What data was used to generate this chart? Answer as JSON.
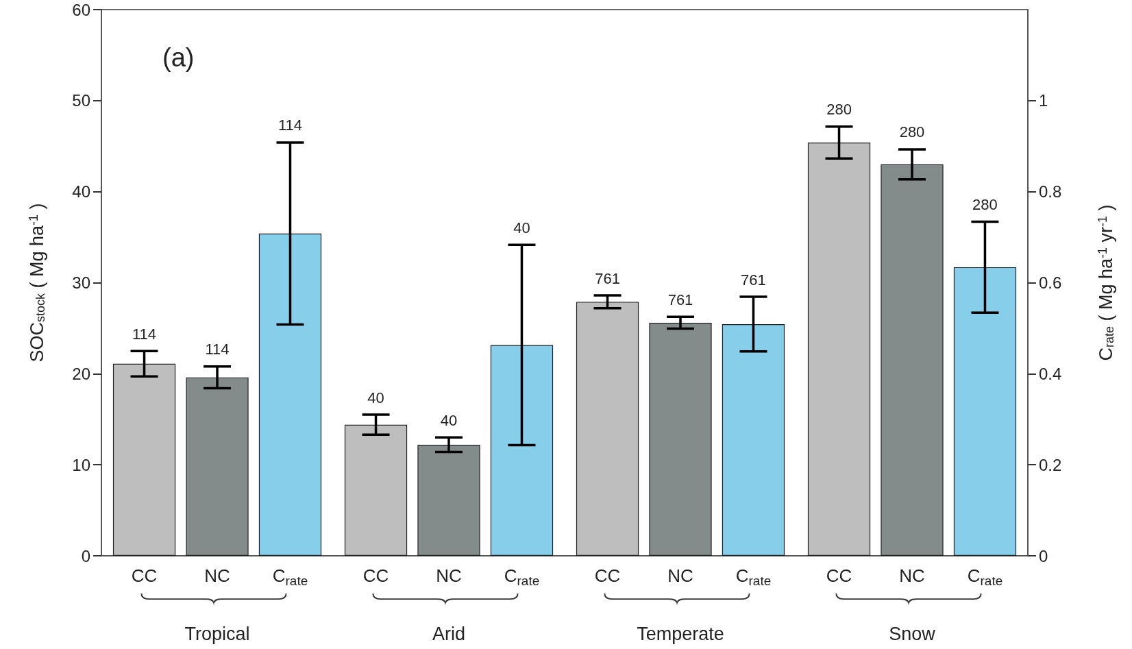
{
  "chart_data": {
    "type": "bar",
    "categories": [
      "Tropical",
      "Arid",
      "Temperate",
      "Snow"
    ],
    "series": [
      {
        "name": "CC",
        "color": "#bebebe",
        "values": [
          21.1,
          14.4,
          27.9,
          45.4
        ],
        "errors": [
          1.4,
          1.1,
          0.7,
          1.75
        ]
      },
      {
        "name": "NC",
        "color": "#848b8b",
        "values": [
          19.6,
          12.2,
          25.6,
          43.0
        ],
        "errors": [
          1.2,
          0.8,
          0.65,
          1.65
        ]
      },
      {
        "name": "C$_{rate}$",
        "color": "#87ceeb",
        "axis": "y2",
        "values": [
          0.708,
          0.463,
          0.509,
          0.634
        ],
        "errors": [
          0.2,
          0.22,
          0.06,
          0.1
        ]
      }
    ],
    "ylabel": "SOC$_{stock}$ ( Mg ha$^{-1}$ )",
    "y2label": "C$_{rate}$ ( Mg ha$^{-1}$ yr$^{-1}$ )",
    "ylim": [
      0,
      60
    ],
    "yticks": [
      0,
      10,
      20,
      30,
      40,
      50,
      60
    ],
    "y2lim": [
      0,
      1.2
    ],
    "y2ticks": [
      0,
      0.2,
      0.4,
      0.6,
      0.8,
      1
    ],
    "grid": false,
    "legend": false,
    "annotations": [
      "(a)",
      "114",
      "114",
      "114",
      "40",
      "40",
      "40",
      "761",
      "761",
      "761",
      "280",
      "280",
      "280"
    ]
  }
}
